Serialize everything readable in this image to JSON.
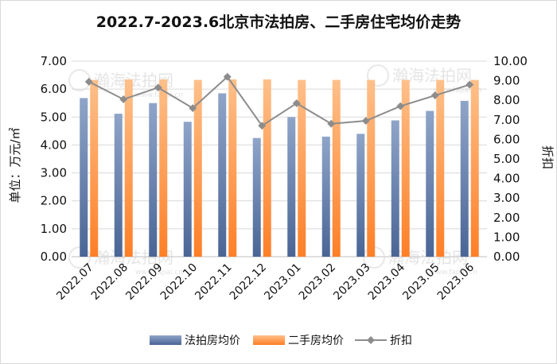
{
  "chart_data": {
    "type": "bar",
    "title": "2022.7-2023.6北京市法拍房、二手房住宅均价走势",
    "ylabel": "单位：万元/㎡",
    "y2label": "折扣",
    "categories": [
      "2022.07",
      "2022.08",
      "2022.09",
      "2022.10",
      "2022.11",
      "2022.12",
      "2023.01",
      "2023.02",
      "2023.03",
      "2023.04",
      "2023.05",
      "2023.06"
    ],
    "ylim": [
      0,
      7
    ],
    "y_ticks": [
      "0.00",
      "1.00",
      "2.00",
      "3.00",
      "4.00",
      "5.00",
      "6.00",
      "7.00"
    ],
    "y2lim": [
      0,
      10
    ],
    "y2_ticks": [
      "0.00",
      "1.00",
      "2.00",
      "3.00",
      "4.00",
      "5.00",
      "6.00",
      "7.00",
      "8.00",
      "9.00",
      "10.00"
    ],
    "series": [
      {
        "name": "法拍房均价",
        "kind": "bar",
        "color": "#4a6595",
        "values": [
          5.68,
          5.12,
          5.5,
          4.83,
          5.85,
          4.25,
          5.0,
          4.3,
          4.4,
          4.88,
          5.22,
          5.58
        ]
      },
      {
        "name": "二手房均价",
        "kind": "bar",
        "color": "#ff7f27",
        "values": [
          6.33,
          6.35,
          6.35,
          6.33,
          6.35,
          6.35,
          6.33,
          6.33,
          6.33,
          6.33,
          6.33,
          6.33
        ]
      },
      {
        "name": "折扣",
        "kind": "line",
        "axis": "right",
        "color": "#8c8c8c",
        "values": [
          8.95,
          8.05,
          8.65,
          7.6,
          9.2,
          6.7,
          7.85,
          6.8,
          6.95,
          7.7,
          8.25,
          8.8
        ]
      }
    ],
    "grid": true,
    "legend": "bottom"
  },
  "watermarks": [
    "瀚海法拍网",
    "www.fapai.cn"
  ]
}
